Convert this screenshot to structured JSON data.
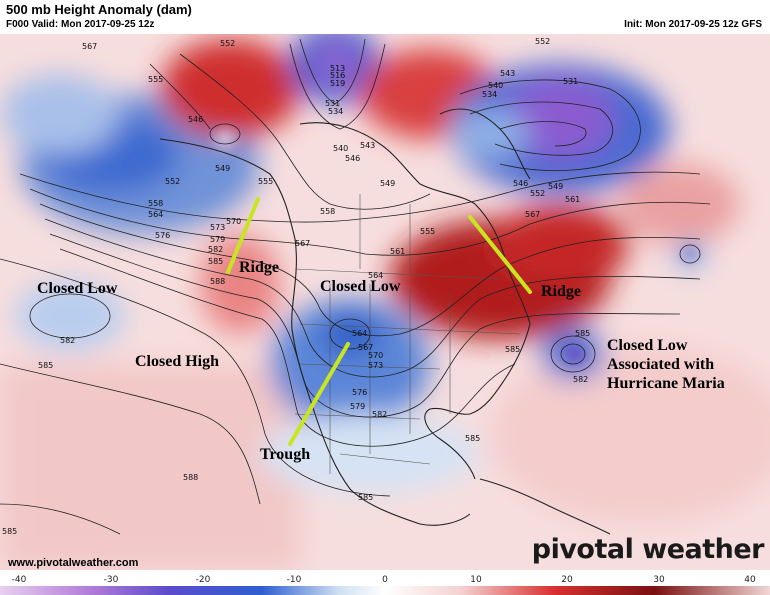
{
  "header": {
    "title": "500 mb Height Anomaly (dam)",
    "valid": "F000 Valid: Mon 2017-09-25 12z",
    "init": "Init: Mon 2017-09-25 12z GFS"
  },
  "annotations": {
    "closed_low_west": "Closed Low",
    "closed_high": "Closed High",
    "ridge_west": "Ridge",
    "closed_low_central": "Closed Low",
    "trough": "Trough",
    "ridge_east": "Ridge",
    "maria_line1": "Closed Low",
    "maria_line2": "Associated with",
    "maria_line3": "Hurricane Maria"
  },
  "contour_labels": {
    "l513": "513",
    "l516": "516",
    "l519": "519",
    "l531": "531",
    "l534": "534",
    "l540": "540",
    "l543": "543",
    "l546": "546",
    "l549": "549",
    "l552": "552",
    "l555": "555",
    "l558": "558",
    "l561": "561",
    "l564": "564",
    "l567": "567",
    "l570": "570",
    "l573": "573",
    "l576": "576",
    "l579": "579",
    "l582": "582",
    "l585": "585",
    "l588": "588"
  },
  "colorbar": {
    "ticks": [
      "-40",
      "-30",
      "-20",
      "-10",
      "0",
      "10",
      "20",
      "30",
      "40"
    ],
    "colors": {
      "neg_strong": "#b07ad8",
      "neg_mid": "#2f5fd0",
      "neg_weak": "#cfe0f2",
      "zero": "#ffffff",
      "pos_weak": "#f5d0d0",
      "pos_mid": "#d83030",
      "pos_strong": "#7a1010"
    }
  },
  "footer": {
    "site": "www.pivotalweather.com",
    "brand": "pivotal weather"
  },
  "overlay_colors": {
    "axis_line": "#c8e620"
  }
}
